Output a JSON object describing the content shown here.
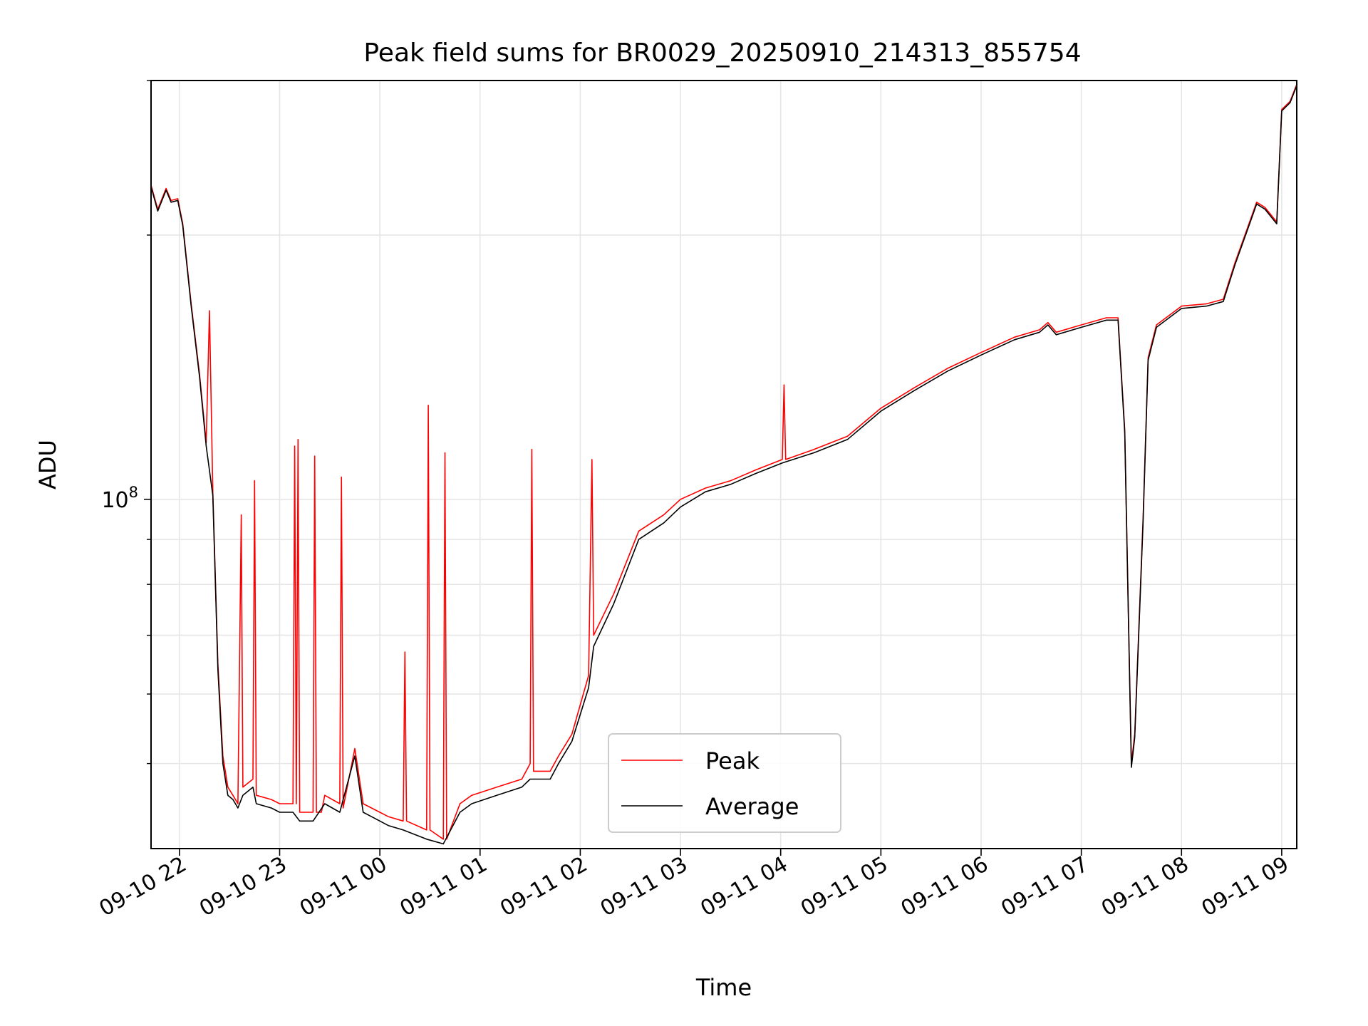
{
  "chart_data": {
    "type": "line",
    "title": "Peak field sums for BR0029_20250910_214313_855754",
    "xlabel": "Time",
    "ylabel": "ADU",
    "yscale": "log",
    "ylim": [
      40000000,
      300000000
    ],
    "xlim": [
      "2025-09-10 21:43",
      "2025-09-11 09:09"
    ],
    "grid": true,
    "legend_position": "lower-center",
    "x_ticks": [
      {
        "t": "2025-09-10 22:00",
        "label": "09-10 22"
      },
      {
        "t": "2025-09-10 23:00",
        "label": "09-10 23"
      },
      {
        "t": "2025-09-11 00:00",
        "label": "09-11 00"
      },
      {
        "t": "2025-09-11 01:00",
        "label": "09-11 01"
      },
      {
        "t": "2025-09-11 02:00",
        "label": "09-11 02"
      },
      {
        "t": "2025-09-11 03:00",
        "label": "09-11 03"
      },
      {
        "t": "2025-09-11 04:00",
        "label": "09-11 04"
      },
      {
        "t": "2025-09-11 05:00",
        "label": "09-11 05"
      },
      {
        "t": "2025-09-11 06:00",
        "label": "09-11 06"
      },
      {
        "t": "2025-09-11 07:00",
        "label": "09-11 07"
      },
      {
        "t": "2025-09-11 08:00",
        "label": "09-11 08"
      },
      {
        "t": "2025-09-11 09:00",
        "label": "09-11 09"
      }
    ],
    "y_major_ticks": [
      {
        "value": 100000000,
        "label": "10^8"
      }
    ],
    "y_minor_ticks": [
      50000000,
      60000000,
      70000000,
      80000000,
      90000000,
      200000000,
      300000000
    ],
    "series": [
      {
        "name": "Peak",
        "color": "#ff0000",
        "points": [
          [
            "2025-09-10 21:43",
            228000000.0
          ],
          [
            "2025-09-10 21:47",
            214000000.0
          ],
          [
            "2025-09-10 21:52",
            226000000.0
          ],
          [
            "2025-09-10 21:55",
            219000000.0
          ],
          [
            "2025-09-10 21:59",
            220000000.0
          ],
          [
            "2025-09-10 22:02",
            206000000.0
          ],
          [
            "2025-09-10 22:07",
            167000000.0
          ],
          [
            "2025-09-10 22:12",
            139000000.0
          ],
          [
            "2025-09-10 22:16",
            116000000.0
          ],
          [
            "2025-09-10 22:18",
            164000000.0
          ],
          [
            "2025-09-10 22:20",
            102000000.0
          ],
          [
            "2025-09-10 22:23",
            65000000.0
          ],
          [
            "2025-09-10 22:26",
            51000000.0
          ],
          [
            "2025-09-10 22:29",
            47000000.0
          ],
          [
            "2025-09-10 22:32",
            46000000.0
          ],
          [
            "2025-09-10 22:35",
            45000000.0
          ],
          [
            "2025-09-10 22:37",
            96000000.0
          ],
          [
            "2025-09-10 22:38",
            47000000.0
          ],
          [
            "2025-09-10 22:44",
            48000000.0
          ],
          [
            "2025-09-10 22:45",
            105000000.0
          ],
          [
            "2025-09-10 22:46",
            46000000.0
          ],
          [
            "2025-09-10 22:55",
            45500000.0
          ],
          [
            "2025-09-10 23:00",
            45000000.0
          ],
          [
            "2025-09-10 23:08",
            45000000.0
          ],
          [
            "2025-09-10 23:09",
            115000000.0
          ],
          [
            "2025-09-10 23:10",
            45000000.0
          ],
          [
            "2025-09-10 23:11",
            117000000.0
          ],
          [
            "2025-09-10 23:12",
            44000000.0
          ],
          [
            "2025-09-10 23:20",
            44000000.0
          ],
          [
            "2025-09-10 23:21",
            112000000.0
          ],
          [
            "2025-09-10 23:22",
            44000000.0
          ],
          [
            "2025-09-10 23:25",
            44000000.0
          ],
          [
            "2025-09-10 23:27",
            46000000.0
          ],
          [
            "2025-09-10 23:36",
            45000000.0
          ],
          [
            "2025-09-10 23:37",
            106000000.0
          ],
          [
            "2025-09-10 23:38",
            44500000.0
          ],
          [
            "2025-09-10 23:45",
            52000000.0
          ],
          [
            "2025-09-10 23:50",
            45000000.0
          ],
          [
            "2025-09-11 00:00",
            44000000.0
          ],
          [
            "2025-09-11 00:05",
            43500000.0
          ],
          [
            "2025-09-11 00:14",
            43000000.0
          ],
          [
            "2025-09-11 00:15",
            67000000.0
          ],
          [
            "2025-09-11 00:16",
            43000000.0
          ],
          [
            "2025-09-11 00:28",
            42000000.0
          ],
          [
            "2025-09-11 00:29",
            128000000.0
          ],
          [
            "2025-09-11 00:30",
            42000000.0
          ],
          [
            "2025-09-11 00:38",
            41000000.0
          ],
          [
            "2025-09-11 00:39",
            113000000.0
          ],
          [
            "2025-09-11 00:40",
            41000000.0
          ],
          [
            "2025-09-11 00:48",
            45000000.0
          ],
          [
            "2025-09-11 00:55",
            46000000.0
          ],
          [
            "2025-09-11 01:10",
            47000000.0
          ],
          [
            "2025-09-11 01:25",
            48000000.0
          ],
          [
            "2025-09-11 01:30",
            50000000.0
          ],
          [
            "2025-09-11 01:31",
            114000000.0
          ],
          [
            "2025-09-11 01:32",
            49000000.0
          ],
          [
            "2025-09-11 01:42",
            49000000.0
          ],
          [
            "2025-09-11 01:47",
            51000000.0
          ],
          [
            "2025-09-11 01:55",
            54000000.0
          ],
          [
            "2025-09-11 02:05",
            63000000.0
          ],
          [
            "2025-09-11 02:07",
            111000000.0
          ],
          [
            "2025-09-11 02:08",
            70000000.0
          ],
          [
            "2025-09-11 02:20",
            78000000.0
          ],
          [
            "2025-09-11 02:35",
            92000000.0
          ],
          [
            "2025-09-11 02:50",
            96000000.0
          ],
          [
            "2025-09-11 03:00",
            100000000.0
          ],
          [
            "2025-09-11 03:15",
            103000000.0
          ],
          [
            "2025-09-11 03:30",
            105000000.0
          ],
          [
            "2025-09-11 03:45",
            108000000.0
          ],
          [
            "2025-09-11 04:01",
            111000000.0
          ],
          [
            "2025-09-11 04:02",
            135000000.0
          ],
          [
            "2025-09-11 04:03",
            111000000.0
          ],
          [
            "2025-09-11 04:20",
            114000000.0
          ],
          [
            "2025-09-11 04:40",
            118000000.0
          ],
          [
            "2025-09-11 05:00",
            127000000.0
          ],
          [
            "2025-09-11 05:20",
            134000000.0
          ],
          [
            "2025-09-11 05:40",
            141000000.0
          ],
          [
            "2025-09-11 06:00",
            147000000.0
          ],
          [
            "2025-09-11 06:20",
            153000000.0
          ],
          [
            "2025-09-11 06:35",
            156000000.0
          ],
          [
            "2025-09-11 06:40",
            159000000.0
          ],
          [
            "2025-09-11 06:45",
            155000000.0
          ],
          [
            "2025-09-11 07:00",
            158000000.0
          ],
          [
            "2025-09-11 07:15",
            161000000.0
          ],
          [
            "2025-09-11 07:22",
            161000000.0
          ],
          [
            "2025-09-11 07:26",
            120000000.0
          ],
          [
            "2025-09-11 07:30",
            50000000.0
          ],
          [
            "2025-09-11 07:32",
            54000000.0
          ],
          [
            "2025-09-11 07:37",
            95000000.0
          ],
          [
            "2025-09-11 07:40",
            145000000.0
          ],
          [
            "2025-09-11 07:45",
            158000000.0
          ],
          [
            "2025-09-11 08:00",
            166000000.0
          ],
          [
            "2025-09-11 08:15",
            167000000.0
          ],
          [
            "2025-09-11 08:25",
            169000000.0
          ],
          [
            "2025-09-11 08:32",
            186000000.0
          ],
          [
            "2025-09-11 08:40",
            205000000.0
          ],
          [
            "2025-09-11 08:45",
            218000000.0
          ],
          [
            "2025-09-11 08:50",
            215000000.0
          ],
          [
            "2025-09-11 08:57",
            207000000.0
          ],
          [
            "2025-09-11 09:00",
            278000000.0
          ],
          [
            "2025-09-11 09:05",
            284000000.0
          ],
          [
            "2025-09-11 09:09",
            297000000.0
          ]
        ]
      },
      {
        "name": "Average",
        "color": "#000000",
        "points": [
          [
            "2025-09-10 21:43",
            227000000.0
          ],
          [
            "2025-09-10 21:47",
            213000000.0
          ],
          [
            "2025-09-10 21:52",
            225000000.0
          ],
          [
            "2025-09-10 21:55",
            218000000.0
          ],
          [
            "2025-09-10 21:59",
            219000000.0
          ],
          [
            "2025-09-10 22:02",
            205000000.0
          ],
          [
            "2025-09-10 22:07",
            166000000.0
          ],
          [
            "2025-09-10 22:12",
            138000000.0
          ],
          [
            "2025-09-10 22:16",
            115000000.0
          ],
          [
            "2025-09-10 22:20",
            101000000.0
          ],
          [
            "2025-09-10 22:23",
            64000000.0
          ],
          [
            "2025-09-10 22:26",
            50000000.0
          ],
          [
            "2025-09-10 22:29",
            46000000.0
          ],
          [
            "2025-09-10 22:32",
            45500000.0
          ],
          [
            "2025-09-10 22:35",
            44500000.0
          ],
          [
            "2025-09-10 22:38",
            46000000.0
          ],
          [
            "2025-09-10 22:44",
            47000000.0
          ],
          [
            "2025-09-10 22:46",
            45000000.0
          ],
          [
            "2025-09-10 22:55",
            44500000.0
          ],
          [
            "2025-09-10 23:00",
            44000000.0
          ],
          [
            "2025-09-10 23:08",
            44000000.0
          ],
          [
            "2025-09-10 23:12",
            43000000.0
          ],
          [
            "2025-09-10 23:20",
            43000000.0
          ],
          [
            "2025-09-10 23:27",
            45000000.0
          ],
          [
            "2025-09-10 23:36",
            44000000.0
          ],
          [
            "2025-09-10 23:45",
            51000000.0
          ],
          [
            "2025-09-10 23:50",
            44000000.0
          ],
          [
            "2025-09-11 00:00",
            43000000.0
          ],
          [
            "2025-09-11 00:05",
            42500000.0
          ],
          [
            "2025-09-11 00:14",
            42000000.0
          ],
          [
            "2025-09-11 00:28",
            41000000.0
          ],
          [
            "2025-09-11 00:38",
            40500000.0
          ],
          [
            "2025-09-11 00:48",
            44000000.0
          ],
          [
            "2025-09-11 00:55",
            45000000.0
          ],
          [
            "2025-09-11 01:10",
            46000000.0
          ],
          [
            "2025-09-11 01:25",
            47000000.0
          ],
          [
            "2025-09-11 01:30",
            48000000.0
          ],
          [
            "2025-09-11 01:42",
            48000000.0
          ],
          [
            "2025-09-11 01:47",
            50000000.0
          ],
          [
            "2025-09-11 01:55",
            53000000.0
          ],
          [
            "2025-09-11 02:05",
            61000000.0
          ],
          [
            "2025-09-11 02:08",
            68000000.0
          ],
          [
            "2025-09-11 02:20",
            76000000.0
          ],
          [
            "2025-09-11 02:35",
            90000000.0
          ],
          [
            "2025-09-11 02:50",
            94000000.0
          ],
          [
            "2025-09-11 03:00",
            98000000.0
          ],
          [
            "2025-09-11 03:15",
            102000000.0
          ],
          [
            "2025-09-11 03:30",
            104000000.0
          ],
          [
            "2025-09-11 03:45",
            107000000.0
          ],
          [
            "2025-09-11 04:01",
            110000000.0
          ],
          [
            "2025-09-11 04:20",
            113000000.0
          ],
          [
            "2025-09-11 04:40",
            117000000.0
          ],
          [
            "2025-09-11 05:00",
            126000000.0
          ],
          [
            "2025-09-11 05:20",
            133000000.0
          ],
          [
            "2025-09-11 05:40",
            140000000.0
          ],
          [
            "2025-09-11 06:00",
            146000000.0
          ],
          [
            "2025-09-11 06:20",
            152000000.0
          ],
          [
            "2025-09-11 06:35",
            155000000.0
          ],
          [
            "2025-09-11 06:40",
            158000000.0
          ],
          [
            "2025-09-11 06:45",
            154000000.0
          ],
          [
            "2025-09-11 07:00",
            157000000.0
          ],
          [
            "2025-09-11 07:15",
            160000000.0
          ],
          [
            "2025-09-11 07:22",
            160000000.0
          ],
          [
            "2025-09-11 07:26",
            119000000.0
          ],
          [
            "2025-09-11 07:30",
            49500000.0
          ],
          [
            "2025-09-11 07:32",
            53500000.0
          ],
          [
            "2025-09-11 07:37",
            94000000.0
          ],
          [
            "2025-09-11 07:40",
            144000000.0
          ],
          [
            "2025-09-11 07:45",
            157000000.0
          ],
          [
            "2025-09-11 08:00",
            165000000.0
          ],
          [
            "2025-09-11 08:15",
            166000000.0
          ],
          [
            "2025-09-11 08:25",
            168000000.0
          ],
          [
            "2025-09-11 08:32",
            185000000.0
          ],
          [
            "2025-09-11 08:40",
            204000000.0
          ],
          [
            "2025-09-11 08:45",
            217000000.0
          ],
          [
            "2025-09-11 08:50",
            214000000.0
          ],
          [
            "2025-09-11 08:57",
            206000000.0
          ],
          [
            "2025-09-11 09:00",
            277000000.0
          ],
          [
            "2025-09-11 09:05",
            283000000.0
          ],
          [
            "2025-09-11 09:09",
            296000000.0
          ]
        ]
      }
    ]
  }
}
